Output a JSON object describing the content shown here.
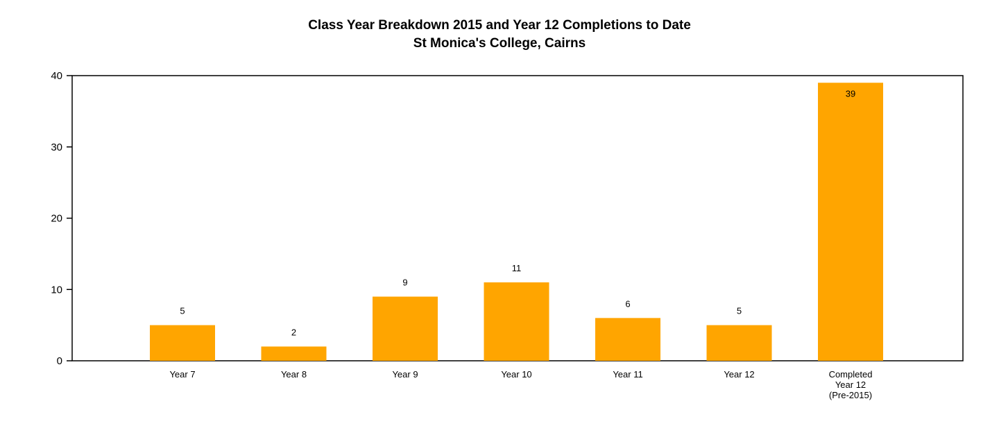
{
  "chart_data": {
    "type": "bar",
    "title": "Class Year Breakdown 2015 and Year 12 Completions to Date",
    "subtitle": "St Monica's College, Cairns",
    "categories": [
      "Year 7",
      "Year 8",
      "Year 9",
      "Year 10",
      "Year 11",
      "Year 12",
      "Completed Year 12 (Pre-2015)"
    ],
    "category_lines": [
      [
        "Year 7"
      ],
      [
        "Year 8"
      ],
      [
        "Year 9"
      ],
      [
        "Year 10"
      ],
      [
        "Year 11"
      ],
      [
        "Year 12"
      ],
      [
        "Completed",
        "Year 12",
        "(Pre-2015)"
      ]
    ],
    "values": [
      5,
      2,
      9,
      11,
      6,
      5,
      39
    ],
    "data_labels": [
      "5",
      "2",
      "9",
      "11",
      "6",
      "5",
      "39"
    ],
    "ylim": [
      0,
      40
    ],
    "yticks": [
      0,
      10,
      20,
      30,
      40
    ],
    "xlabel": "",
    "ylabel": "",
    "bar_color": "#FFA500",
    "grid": false,
    "legend": "none"
  }
}
